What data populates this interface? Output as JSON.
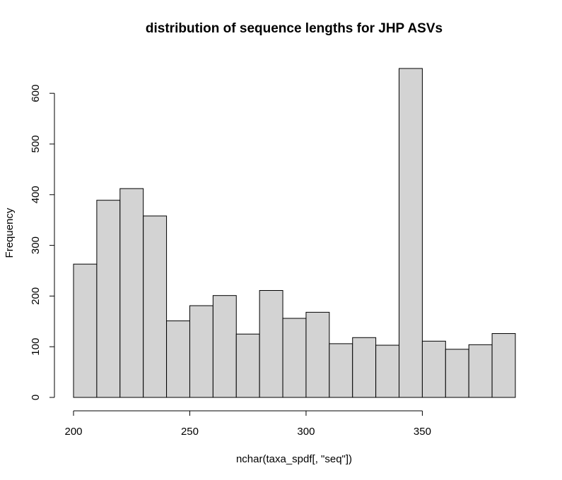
{
  "chart_data": {
    "type": "bar",
    "title": "distribution of sequence lengths for JHP ASVs",
    "xlabel": "nchar(taxa_spdf[, \"seq\"])",
    "ylabel": "Frequency",
    "bin_width": 10,
    "bins": [
      {
        "start": 200,
        "end": 210,
        "value": 263
      },
      {
        "start": 210,
        "end": 220,
        "value": 389
      },
      {
        "start": 220,
        "end": 230,
        "value": 412
      },
      {
        "start": 230,
        "end": 240,
        "value": 358
      },
      {
        "start": 240,
        "end": 250,
        "value": 151
      },
      {
        "start": 250,
        "end": 260,
        "value": 181
      },
      {
        "start": 260,
        "end": 270,
        "value": 201
      },
      {
        "start": 270,
        "end": 280,
        "value": 125
      },
      {
        "start": 280,
        "end": 290,
        "value": 211
      },
      {
        "start": 290,
        "end": 300,
        "value": 156
      },
      {
        "start": 300,
        "end": 310,
        "value": 168
      },
      {
        "start": 310,
        "end": 320,
        "value": 106
      },
      {
        "start": 320,
        "end": 330,
        "value": 118
      },
      {
        "start": 330,
        "end": 340,
        "value": 103
      },
      {
        "start": 340,
        "end": 350,
        "value": 649
      },
      {
        "start": 350,
        "end": 360,
        "value": 111
      },
      {
        "start": 360,
        "end": 370,
        "value": 95
      },
      {
        "start": 370,
        "end": 380,
        "value": 104
      },
      {
        "start": 380,
        "end": 390,
        "value": 126
      }
    ],
    "x_ticks": [
      200,
      250,
      300,
      350
    ],
    "y_ticks": [
      0,
      100,
      200,
      300,
      400,
      500,
      600
    ],
    "xlim": [
      200,
      390
    ],
    "ylim": [
      0,
      649
    ],
    "grid": false,
    "bar_color": "#d3d3d3"
  }
}
